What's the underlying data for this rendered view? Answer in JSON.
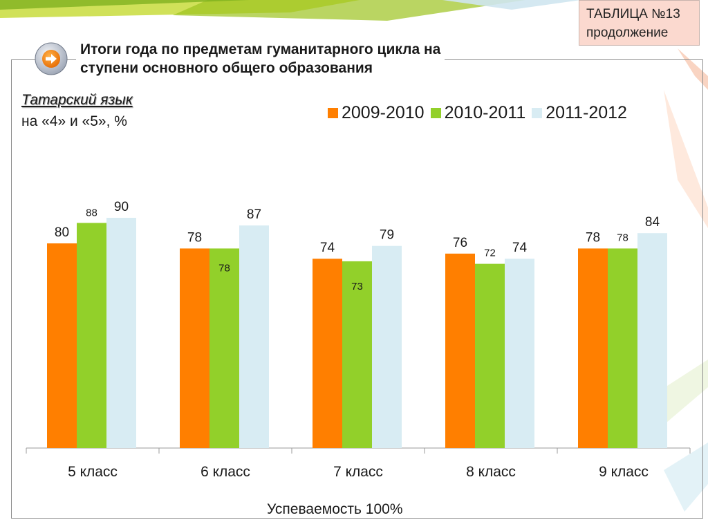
{
  "header": {
    "title_line1": "Итоги года по предметам гуманитарного цикла на",
    "title_line2": "ступени основного общего образования",
    "table_label": "ТАБЛИЦА №13",
    "table_sublabel": "продолжение"
  },
  "subject": {
    "name": "Татарский язык",
    "subtitle": "на «4» и «5», %"
  },
  "footer": {
    "text": "Успеваемость 100%"
  },
  "icons": {
    "nav": "arrow-right-icon"
  },
  "chart_data": {
    "type": "bar",
    "categories": [
      "5 класс",
      "6 класс",
      "7 класс",
      "8 класс",
      "9 класс"
    ],
    "series": [
      {
        "name": "2009-2010",
        "color": "#ff7f00",
        "values": [
          80,
          78,
          74,
          76,
          78
        ]
      },
      {
        "name": "2010-2011",
        "color": "#92d02a",
        "values": [
          88,
          78,
          73,
          72,
          78
        ]
      },
      {
        "name": "2011-2012",
        "color": "#d8ecf3",
        "values": [
          90,
          87,
          79,
          74,
          84
        ]
      }
    ],
    "ylim": [
      0,
      100
    ],
    "grid": false,
    "legend": "top-right",
    "data_labels": true
  }
}
